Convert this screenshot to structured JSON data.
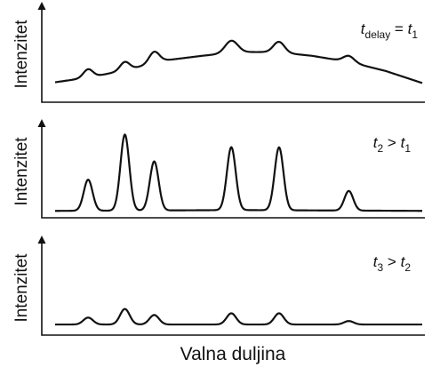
{
  "chart_data": [
    {
      "type": "line",
      "ylabel": "Intenzitet",
      "xlabel": "",
      "annotation": {
        "main": "t",
        "sub": "delay",
        "op": " = ",
        "rhs_main": "t",
        "rhs_sub": "1"
      },
      "series": [
        {
          "baseline": [
            [
              0.0,
              0.17
            ],
            [
              0.1,
              0.24
            ],
            [
              0.2,
              0.34
            ],
            [
              0.3,
              0.46
            ],
            [
              0.4,
              0.52
            ],
            [
              0.5,
              0.57
            ],
            [
              0.6,
              0.57
            ],
            [
              0.7,
              0.52
            ],
            [
              0.8,
              0.44
            ],
            [
              0.9,
              0.32
            ],
            [
              1.0,
              0.16
            ]
          ],
          "peaks": [
            {
              "x": 0.09,
              "height": 0.11,
              "width": 0.013
            },
            {
              "x": 0.19,
              "height": 0.11,
              "width": 0.013
            },
            {
              "x": 0.27,
              "height": 0.15,
              "width": 0.014
            },
            {
              "x": 0.48,
              "height": 0.16,
              "width": 0.017
            },
            {
              "x": 0.61,
              "height": 0.14,
              "width": 0.015
            },
            {
              "x": 0.8,
              "height": 0.08,
              "width": 0.015
            }
          ]
        }
      ]
    },
    {
      "type": "line",
      "ylabel": "Intenzitet",
      "xlabel": "",
      "annotation": {
        "main": "t",
        "sub": "2",
        "op": " > ",
        "rhs_main": "t",
        "rhs_sub": "1"
      },
      "series": [
        {
          "baseline": [
            [
              0.0,
              0.03
            ],
            [
              0.5,
              0.04
            ],
            [
              1.0,
              0.03
            ]
          ],
          "peaks": [
            {
              "x": 0.09,
              "height": 0.38,
              "width": 0.012
            },
            {
              "x": 0.19,
              "height": 0.93,
              "width": 0.012
            },
            {
              "x": 0.27,
              "height": 0.6,
              "width": 0.012
            },
            {
              "x": 0.48,
              "height": 0.77,
              "width": 0.012
            },
            {
              "x": 0.61,
              "height": 0.77,
              "width": 0.012
            },
            {
              "x": 0.8,
              "height": 0.24,
              "width": 0.012
            }
          ]
        }
      ]
    },
    {
      "type": "line",
      "ylabel": "Intenzitet",
      "xlabel": "Valna duljina",
      "annotation": {
        "main": "t",
        "sub": "3",
        "op": " > ",
        "rhs_main": "t",
        "rhs_sub": "2"
      },
      "series": [
        {
          "baseline": [
            [
              0.0,
              0.02
            ],
            [
              1.0,
              0.02
            ]
          ],
          "peaks": [
            {
              "x": 0.09,
              "height": 0.08,
              "width": 0.013
            },
            {
              "x": 0.19,
              "height": 0.18,
              "width": 0.013
            },
            {
              "x": 0.27,
              "height": 0.11,
              "width": 0.013
            },
            {
              "x": 0.48,
              "height": 0.13,
              "width": 0.013
            },
            {
              "x": 0.61,
              "height": 0.13,
              "width": 0.013
            },
            {
              "x": 0.8,
              "height": 0.04,
              "width": 0.013
            }
          ]
        }
      ]
    }
  ]
}
